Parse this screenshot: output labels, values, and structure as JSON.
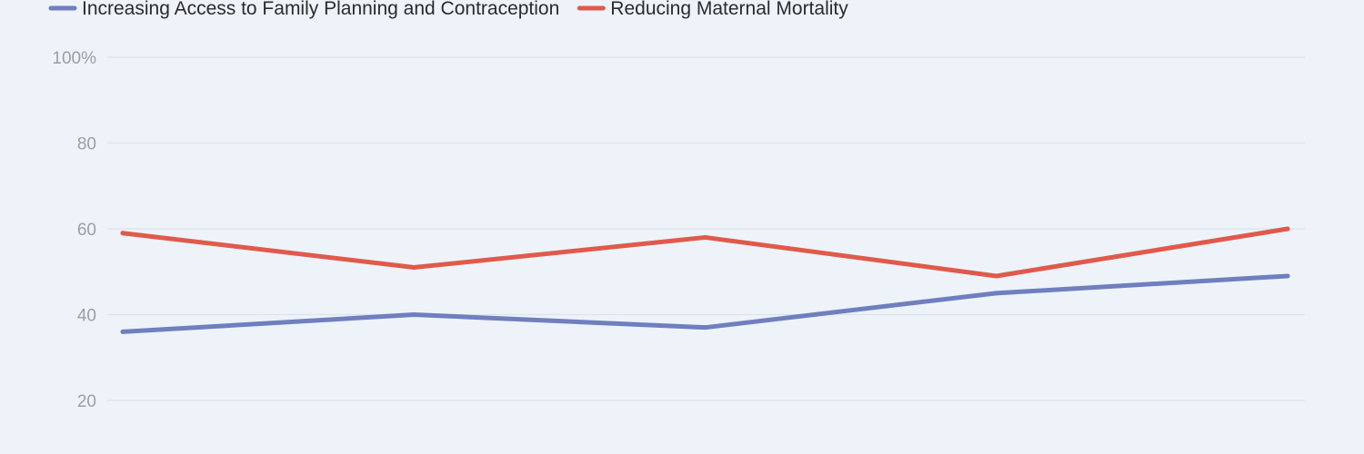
{
  "chart_data": {
    "type": "line",
    "title": "",
    "xlabel": "",
    "ylabel": "",
    "ylim": [
      20,
      100
    ],
    "y_ticks": [
      {
        "value": 100,
        "label": "100%"
      },
      {
        "value": 80,
        "label": "80"
      },
      {
        "value": 60,
        "label": "60"
      },
      {
        "value": 40,
        "label": "40"
      },
      {
        "value": 20,
        "label": "20"
      }
    ],
    "grid": true,
    "legend_position": "top-left",
    "x": [
      1,
      2,
      3,
      4,
      5
    ],
    "series": [
      {
        "name": "Increasing Access to Family Planning and Contraception",
        "color": "#6f7fbf",
        "values": [
          36,
          40,
          37,
          45,
          49
        ]
      },
      {
        "name": "Reducing Maternal Mortality",
        "color": "#e05a4b",
        "values": [
          59,
          51,
          58,
          49,
          60
        ]
      }
    ]
  }
}
